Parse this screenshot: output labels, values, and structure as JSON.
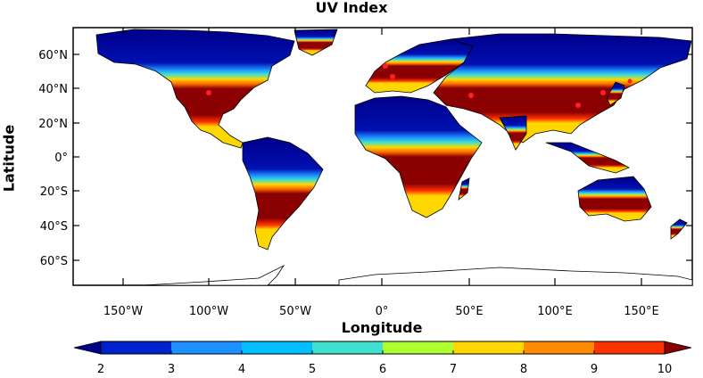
{
  "map": {
    "title": "UV Index",
    "xlabel": "Longitude",
    "ylabel": "Latitude",
    "xticks": [
      "150°W",
      "100°W",
      "50°W",
      "0°",
      "50°E",
      "100°E",
      "150°E"
    ],
    "yticks": [
      "60°N",
      "40°N",
      "20°N",
      "0°",
      "20°S",
      "40°S",
      "60°S"
    ],
    "colorbar": {
      "ticks": [
        "2",
        "3",
        "4",
        "5",
        "6",
        "7",
        "8",
        "9",
        "10"
      ],
      "colors": [
        "#00008B",
        "#0022CC",
        "#1E90FF",
        "#00BFFF",
        "#40E0D0",
        "#ADFF2F",
        "#FFD700",
        "#FF8C00",
        "#FF3300",
        "#8B0000"
      ]
    }
  }
}
